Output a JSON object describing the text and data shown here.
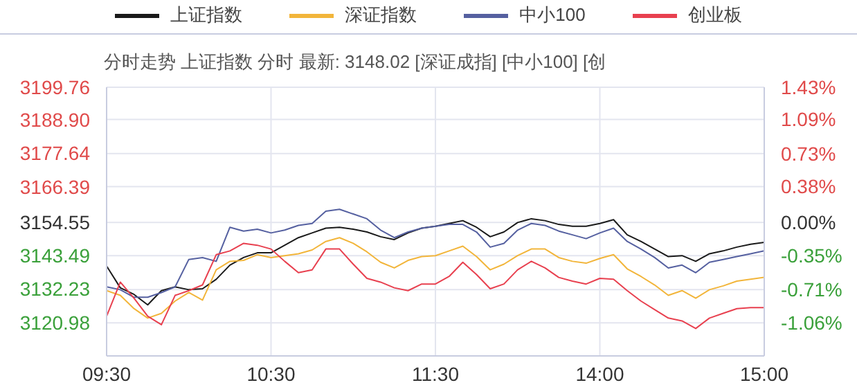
{
  "chart_data": {
    "type": "line",
    "subtitle": "分时走势 上证指数 分时 最新: 3148.02 [深证成指] [中小100] [创",
    "legend": "top",
    "grid": true,
    "marker": "none",
    "line_style": "solid",
    "categories": [
      "09:30",
      null,
      null,
      null,
      null,
      null,
      null,
      null,
      null,
      null,
      null,
      null,
      "10:30",
      null,
      null,
      null,
      null,
      null,
      null,
      null,
      null,
      null,
      null,
      null,
      "11:30",
      null,
      null,
      null,
      null,
      null,
      null,
      null,
      null,
      null,
      null,
      null,
      "14:00",
      null,
      null,
      null,
      null,
      null,
      null,
      null,
      null,
      null,
      null,
      null,
      "15:00"
    ],
    "ylim": [
      3109.73,
      3199.76
    ],
    "yticks": [
      3120.98,
      3132.23,
      3143.49,
      3154.55,
      3166.39,
      3177.64,
      {
        "value": 3188.9,
        "label": "3188.90"
      },
      3199.76
    ],
    "y2lim": [
      -1.41,
      1.43
    ],
    "y2ticks": [
      {
        "value": -1.06,
        "label": "-1.06%"
      },
      {
        "value": -0.71,
        "label": "-0.71%"
      },
      {
        "value": -0.35,
        "label": "-0.35%"
      },
      {
        "value": 0,
        "label": "0.00%"
      },
      {
        "value": 0.38,
        "label": "0.38%"
      },
      {
        "value": 0.73,
        "label": "0.73%"
      },
      {
        "value": 1.09,
        "label": "1.09%"
      },
      {
        "value": 1.43,
        "label": "1.43%"
      }
    ],
    "series": [
      {
        "name": "上证指数",
        "color": "#1a1a1a",
        "axis": "y2",
        "values": [
          -0.46,
          -0.69,
          -0.76,
          -0.87,
          -0.72,
          -0.68,
          -0.71,
          -0.7,
          -0.6,
          -0.45,
          -0.37,
          -0.32,
          -0.32,
          -0.24,
          -0.16,
          -0.11,
          -0.06,
          -0.05,
          -0.07,
          -0.1,
          -0.15,
          -0.18,
          -0.11,
          -0.06,
          -0.04,
          -0.01,
          0.02,
          -0.05,
          -0.15,
          -0.1,
          0,
          0.04,
          0.02,
          -0.02,
          -0.04,
          -0.04,
          -0.01,
          0.03,
          -0.13,
          -0.2,
          -0.28,
          -0.36,
          -0.35,
          -0.41,
          -0.33,
          -0.3,
          -0.26,
          -0.23,
          -0.21
        ]
      },
      {
        "name": "深证指数",
        "color": "#f2b53a",
        "axis": "y2",
        "values": [
          -0.72,
          -0.77,
          -0.91,
          -1.01,
          -0.96,
          -0.83,
          -0.74,
          -0.82,
          -0.5,
          -0.41,
          -0.4,
          -0.34,
          -0.37,
          -0.35,
          -0.33,
          -0.29,
          -0.2,
          -0.16,
          -0.22,
          -0.31,
          -0.42,
          -0.48,
          -0.4,
          -0.36,
          -0.35,
          -0.3,
          -0.25,
          -0.36,
          -0.5,
          -0.44,
          -0.35,
          -0.28,
          -0.28,
          -0.37,
          -0.41,
          -0.43,
          -0.38,
          -0.34,
          -0.49,
          -0.57,
          -0.66,
          -0.77,
          -0.72,
          -0.8,
          -0.71,
          -0.67,
          -0.62,
          -0.6,
          -0.58
        ]
      },
      {
        "name": "中小100",
        "color": "#5560a0",
        "axis": "y2",
        "values": [
          -0.68,
          -0.71,
          -0.79,
          -0.79,
          -0.74,
          -0.68,
          -0.39,
          -0.37,
          -0.41,
          -0.05,
          -0.09,
          -0.07,
          -0.11,
          -0.08,
          -0.03,
          -0.01,
          0.12,
          0.14,
          0.09,
          0.04,
          -0.08,
          -0.16,
          -0.1,
          -0.06,
          -0.04,
          -0.02,
          -0.02,
          -0.1,
          -0.26,
          -0.22,
          -0.08,
          -0.01,
          -0.03,
          -0.09,
          -0.13,
          -0.17,
          -0.11,
          -0.06,
          -0.2,
          -0.28,
          -0.37,
          -0.48,
          -0.45,
          -0.53,
          -0.42,
          -0.39,
          -0.36,
          -0.33,
          -0.3
        ]
      },
      {
        "name": "创业板",
        "color": "#e8404f",
        "axis": "y2",
        "values": [
          -0.99,
          -0.63,
          -0.8,
          -0.99,
          -1.08,
          -0.77,
          -0.72,
          -0.66,
          -0.34,
          -0.3,
          -0.22,
          -0.24,
          -0.28,
          -0.41,
          -0.53,
          -0.5,
          -0.28,
          -0.28,
          -0.44,
          -0.59,
          -0.63,
          -0.69,
          -0.72,
          -0.65,
          -0.65,
          -0.57,
          -0.42,
          -0.55,
          -0.7,
          -0.65,
          -0.5,
          -0.41,
          -0.48,
          -0.58,
          -0.62,
          -0.65,
          -0.59,
          -0.6,
          -0.72,
          -0.83,
          -0.92,
          -1.01,
          -1.04,
          -1.12,
          -1.01,
          -0.96,
          -0.91,
          -0.9,
          -0.9
        ]
      }
    ]
  }
}
